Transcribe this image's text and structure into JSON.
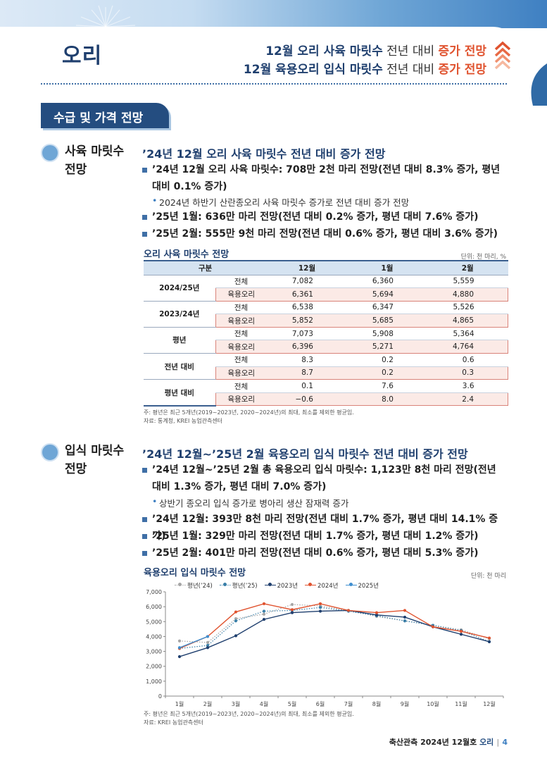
{
  "header": {
    "section_title": "오리",
    "headline1": {
      "a": "12월 오리 사육 마릿수",
      "b": " 전년 대비 ",
      "c": "증가 전망"
    },
    "headline2": {
      "a": "12월 육용오리 입식 마릿수",
      "b": " 전년 대비 ",
      "c": "증가 전망"
    }
  },
  "section_tag": "수급 및 가격 전망",
  "block1": {
    "side_title_1": "사육 마릿수",
    "side_title_2": "전망",
    "subhead": "’24년 12월 오리 사육 마릿수 전년 대비 증가 전망",
    "bullets": [
      "’24년 12월 오리 사육 마릿수: 708만 2천 마리 전망(전년 대비 8.3% 증가, 평년 대비 0.1% 증가)",
      "’25년 1월: 636만 마리 전망(전년 대비 0.2% 증가, 평년 대비 7.6% 증가)",
      "’25년 2월: 555만 9천 마리 전망(전년 대비 0.6% 증가, 평년 대비 3.6% 증가)"
    ],
    "subbullet": "2024년 하반기 산란종오리 사육 마릿수 증가로 전년 대비 증가 전망",
    "table_caption": "오리 사육 마릿수 전망",
    "table_unit": "단위: 천 마리, %",
    "table": {
      "headers": [
        "구분",
        "12월",
        "1월",
        "2월"
      ],
      "groups": [
        {
          "name": "2024/25년",
          "rows": [
            [
              "전체",
              "7,082",
              "6,360",
              "5,559"
            ],
            [
              "육용오리",
              "6,361",
              "5,694",
              "4,880"
            ]
          ]
        },
        {
          "name": "2023/24년",
          "rows": [
            [
              "전체",
              "6,538",
              "6,347",
              "5,526"
            ],
            [
              "육용오리",
              "5,852",
              "5,685",
              "4,865"
            ]
          ]
        },
        {
          "name": "평년",
          "rows": [
            [
              "전체",
              "7,073",
              "5,908",
              "5,364"
            ],
            [
              "육용오리",
              "6,396",
              "5,271",
              "4,764"
            ]
          ]
        },
        {
          "name": "전년 대비",
          "rows": [
            [
              "전체",
              "8.3",
              "0.2",
              "0.6"
            ],
            [
              "육용오리",
              "8.7",
              "0.2",
              "0.3"
            ]
          ]
        },
        {
          "name": "평년 대비",
          "rows": [
            [
              "전체",
              "0.1",
              "7.6",
              "3.6"
            ],
            [
              "육용오리",
              "−0.6",
              "8.0",
              "2.4"
            ]
          ]
        }
      ]
    },
    "note1": "주: 평년은 최근 5개년(2019~2023년, 2020~2024년)의 최대, 최소를 제외한 평균임.",
    "note2": "자료: 통계청, KREI 농업관측센터"
  },
  "block2": {
    "side_title_1": "입식 마릿수",
    "side_title_2": "전망",
    "subhead": "’24년 12월~’25년 2월 육용오리 입식 마릿수 전년 대비 증가 전망",
    "bullets": [
      "’24년 12월~’25년 2월 총 육용오리 입식 마릿수: 1,123만 8천 마리 전망(전년 대비 1.3% 증가, 평년 대비 7.0% 증가)",
      "’24년 12월: 393만 8천 마리 전망(전년 대비 1.7% 증가, 평년 대비 14.1% 증가)",
      "’25년 1월: 329만 마리 전망(전년 대비 1.7% 증가, 평년 대비 1.2% 증가)",
      "’25년 2월: 401만 마리 전망(전년 대비 0.6% 증가, 평년 대비 5.3% 증가)"
    ],
    "subbullet": "상반기 종오리 입식 증가로 병아리 생산 잠재력 증가",
    "chart_caption": "육용오리 입식 마릿수 전망",
    "chart_unit": "단위: 천 마리",
    "note1": "주: 평년은 최근 5개년(2019~2023년, 2020~2024년)의 최대, 최소를 제외한 평균임.",
    "note2": "자료: KREI 농업관측센터"
  },
  "chart_data": {
    "type": "line",
    "categories": [
      "1월",
      "2월",
      "3월",
      "4월",
      "5월",
      "6월",
      "7월",
      "8월",
      "9월",
      "10월",
      "11월",
      "12월"
    ],
    "ylim": [
      0,
      7000
    ],
    "yticks": [
      "0",
      "1,000",
      "2,000",
      "3,000",
      "4,000",
      "5,000",
      "6,000",
      "7,000"
    ],
    "legend_position": "top-left",
    "series": [
      {
        "name": "평년(’24)",
        "color": "#a6a6a6",
        "style": "dotted",
        "values": [
          3700,
          3600,
          5200,
          5500,
          6150,
          6050,
          5750,
          5350,
          5050,
          4750,
          4450,
          3850
        ]
      },
      {
        "name": "평년(’25)",
        "color": "#3a7fa8",
        "style": "dotted",
        "values": [
          3200,
          3400,
          5050,
          5700,
          5750,
          5950,
          5700,
          5400,
          5050,
          4750,
          4400,
          3650
        ]
      },
      {
        "name": "2023년",
        "color": "#1f3f6e",
        "style": "solid",
        "values": [
          2650,
          3250,
          4050,
          5150,
          5600,
          5700,
          5750,
          5450,
          5300,
          4650,
          4150,
          3650
        ]
      },
      {
        "name": "2024년",
        "color": "#e0532f",
        "style": "solid",
        "values": [
          3200,
          4000,
          5650,
          6200,
          5800,
          6200,
          5750,
          5600,
          5750,
          4650,
          4350,
          3900
        ]
      },
      {
        "name": "2025년",
        "color": "#3f8fd0",
        "style": "solid",
        "values": [
          3250,
          4000,
          null,
          null,
          null,
          null,
          null,
          null,
          null,
          null,
          null,
          null
        ]
      }
    ]
  },
  "footer": {
    "label": "축산관측 2024년 12월호",
    "accent": "오리",
    "page": "4"
  }
}
